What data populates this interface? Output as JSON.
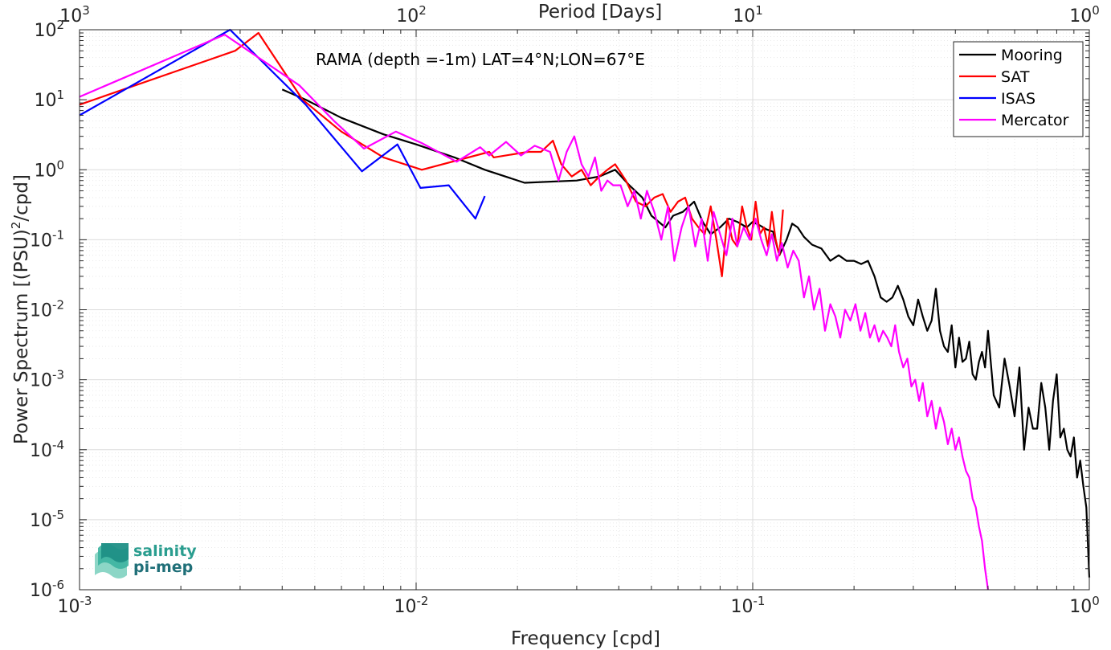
{
  "chart_data": {
    "type": "line",
    "title": "RAMA (depth =-1m) LAT=4°N;LON=67°E",
    "xlabel": "Frequency [cpd]",
    "ylabel": "Power Spectrum [(PSU)²/cpd]",
    "top_xlabel": "Period [Days]",
    "x_scale": "log",
    "y_scale": "log",
    "xlim": [
      0.001,
      1
    ],
    "ylim": [
      1e-06,
      100
    ],
    "grid": true,
    "legend_position": "top-right",
    "x_ticks": [
      {
        "value": 0.001,
        "base": "10",
        "exp": "-3"
      },
      {
        "value": 0.01,
        "base": "10",
        "exp": "-2"
      },
      {
        "value": 0.1,
        "base": "10",
        "exp": "-1"
      },
      {
        "value": 1,
        "base": "10",
        "exp": "0"
      }
    ],
    "top_ticks": [
      {
        "value": 1000,
        "base": "10",
        "exp": "3"
      },
      {
        "value": 100,
        "base": "10",
        "exp": "2"
      },
      {
        "value": 10,
        "base": "10",
        "exp": "1"
      },
      {
        "value": 1,
        "base": "10",
        "exp": "0"
      }
    ],
    "y_ticks": [
      {
        "value": 100,
        "base": "10",
        "exp": "2"
      },
      {
        "value": 10,
        "base": "10",
        "exp": "1"
      },
      {
        "value": 1,
        "base": "10",
        "exp": "0"
      },
      {
        "value": 0.1,
        "base": "10",
        "exp": "-1"
      },
      {
        "value": 0.01,
        "base": "10",
        "exp": "-2"
      },
      {
        "value": 0.001,
        "base": "10",
        "exp": "-3"
      },
      {
        "value": 0.0001,
        "base": "10",
        "exp": "-4"
      },
      {
        "value": 1e-05,
        "base": "10",
        "exp": "-5"
      },
      {
        "value": 1e-06,
        "base": "10",
        "exp": "-6"
      }
    ],
    "series": [
      {
        "name": "Mooring",
        "color": "#000000",
        "x": [
          0.004,
          0.0047,
          0.006,
          0.008,
          0.01,
          0.013,
          0.016,
          0.021,
          0.03,
          0.035,
          0.039,
          0.043,
          0.047,
          0.05,
          0.055,
          0.058,
          0.062,
          0.067,
          0.071,
          0.075,
          0.08,
          0.085,
          0.09,
          0.096,
          0.1,
          0.105,
          0.11,
          0.115,
          0.12,
          0.126,
          0.131,
          0.136,
          0.142,
          0.15,
          0.16,
          0.17,
          0.18,
          0.19,
          0.2,
          0.21,
          0.22,
          0.23,
          0.24,
          0.25,
          0.26,
          0.27,
          0.28,
          0.29,
          0.3,
          0.31,
          0.32,
          0.33,
          0.34,
          0.35,
          0.36,
          0.37,
          0.38,
          0.39,
          0.4,
          0.41,
          0.42,
          0.43,
          0.44,
          0.45,
          0.46,
          0.47,
          0.48,
          0.49,
          0.5,
          0.52,
          0.54,
          0.56,
          0.58,
          0.6,
          0.62,
          0.64,
          0.66,
          0.68,
          0.7,
          0.72,
          0.74,
          0.76,
          0.78,
          0.8,
          0.82,
          0.84,
          0.86,
          0.88,
          0.9,
          0.92,
          0.94,
          0.96,
          0.98,
          1.0
        ],
        "y": [
          14,
          10,
          5.5,
          3.2,
          2.3,
          1.5,
          1.0,
          0.65,
          0.7,
          0.8,
          1.0,
          0.6,
          0.4,
          0.22,
          0.15,
          0.22,
          0.25,
          0.35,
          0.18,
          0.12,
          0.15,
          0.2,
          0.18,
          0.15,
          0.18,
          0.16,
          0.14,
          0.13,
          0.06,
          0.1,
          0.17,
          0.15,
          0.11,
          0.085,
          0.075,
          0.05,
          0.06,
          0.05,
          0.05,
          0.045,
          0.05,
          0.03,
          0.015,
          0.013,
          0.015,
          0.022,
          0.014,
          0.008,
          0.006,
          0.014,
          0.008,
          0.005,
          0.007,
          0.02,
          0.005,
          0.003,
          0.0025,
          0.006,
          0.0015,
          0.004,
          0.0018,
          0.002,
          0.0035,
          0.0012,
          0.001,
          0.0018,
          0.0025,
          0.0015,
          0.005,
          0.0006,
          0.0004,
          0.002,
          0.0008,
          0.0003,
          0.0015,
          0.0001,
          0.0004,
          0.0002,
          0.0002,
          0.0009,
          0.0004,
          0.0001,
          0.0005,
          0.0012,
          0.00015,
          0.0002,
          0.0001,
          8e-05,
          0.00015,
          4e-05,
          7e-05,
          3e-05,
          1.5e-05,
          1.5e-06
        ]
      },
      {
        "name": "SAT",
        "color": "#ff0000",
        "x": [
          0.001,
          0.0029,
          0.0034,
          0.0046,
          0.006,
          0.008,
          0.0104,
          0.0165,
          0.017,
          0.0215,
          0.0235,
          0.0255,
          0.027,
          0.029,
          0.031,
          0.033,
          0.035,
          0.037,
          0.039,
          0.042,
          0.045,
          0.048,
          0.051,
          0.054,
          0.057,
          0.06,
          0.063,
          0.066,
          0.069,
          0.072,
          0.075,
          0.078,
          0.081,
          0.084,
          0.087,
          0.09,
          0.093,
          0.096,
          0.099,
          0.102,
          0.105,
          0.108,
          0.111,
          0.114,
          0.117,
          0.12,
          0.123
        ],
        "y": [
          8.5,
          50,
          90,
          10,
          3.5,
          1.5,
          1.0,
          1.8,
          1.5,
          1.8,
          1.8,
          2.6,
          1.2,
          0.8,
          1.0,
          0.6,
          0.8,
          1.0,
          1.2,
          0.7,
          0.35,
          0.3,
          0.4,
          0.45,
          0.25,
          0.35,
          0.4,
          0.2,
          0.15,
          0.12,
          0.3,
          0.1,
          0.03,
          0.2,
          0.1,
          0.08,
          0.3,
          0.15,
          0.1,
          0.35,
          0.12,
          0.15,
          0.08,
          0.25,
          0.1,
          0.06,
          0.27
        ]
      },
      {
        "name": "ISAS",
        "color": "#0000ff",
        "x": [
          0.001,
          0.0028,
          0.0047,
          0.0069,
          0.0088,
          0.0103,
          0.0125,
          0.015,
          0.016
        ],
        "y": [
          6.0,
          100,
          8.5,
          0.95,
          2.3,
          0.55,
          0.6,
          0.2,
          0.42
        ]
      },
      {
        "name": "Mercator",
        "color": "#ff00ff",
        "x": [
          0.001,
          0.0027,
          0.0045,
          0.0057,
          0.007,
          0.0087,
          0.0104,
          0.0132,
          0.0155,
          0.0165,
          0.0185,
          0.0205,
          0.0225,
          0.025,
          0.0265,
          0.028,
          0.0295,
          0.031,
          0.0325,
          0.034,
          0.0355,
          0.037,
          0.0385,
          0.0405,
          0.0425,
          0.0445,
          0.0465,
          0.0485,
          0.051,
          0.0535,
          0.056,
          0.0585,
          0.0615,
          0.0645,
          0.0675,
          0.0705,
          0.0735,
          0.0765,
          0.08,
          0.0835,
          0.087,
          0.09,
          0.094,
          0.098,
          0.102,
          0.106,
          0.11,
          0.114,
          0.118,
          0.122,
          0.127,
          0.132,
          0.137,
          0.142,
          0.147,
          0.152,
          0.158,
          0.164,
          0.17,
          0.176,
          0.182,
          0.188,
          0.195,
          0.202,
          0.209,
          0.216,
          0.223,
          0.23,
          0.237,
          0.244,
          0.251,
          0.258,
          0.265,
          0.272,
          0.28,
          0.288,
          0.296,
          0.304,
          0.312,
          0.32,
          0.33,
          0.34,
          0.35,
          0.36,
          0.37,
          0.38,
          0.39,
          0.4,
          0.41,
          0.42,
          0.43,
          0.44,
          0.45,
          0.46,
          0.47,
          0.48,
          0.49,
          0.5
        ],
        "y": [
          11,
          85,
          16,
          5,
          2.0,
          3.5,
          2.4,
          1.3,
          2.1,
          1.6,
          2.5,
          1.6,
          2.2,
          1.8,
          0.7,
          1.8,
          3.0,
          1.2,
          0.8,
          1.5,
          0.5,
          0.7,
          0.6,
          0.6,
          0.3,
          0.5,
          0.2,
          0.5,
          0.25,
          0.1,
          0.3,
          0.05,
          0.15,
          0.3,
          0.08,
          0.2,
          0.05,
          0.25,
          0.12,
          0.06,
          0.2,
          0.08,
          0.15,
          0.1,
          0.2,
          0.1,
          0.06,
          0.12,
          0.05,
          0.09,
          0.04,
          0.07,
          0.05,
          0.015,
          0.03,
          0.01,
          0.02,
          0.005,
          0.012,
          0.008,
          0.004,
          0.01,
          0.007,
          0.012,
          0.005,
          0.009,
          0.004,
          0.006,
          0.0035,
          0.005,
          0.004,
          0.003,
          0.006,
          0.0025,
          0.0015,
          0.002,
          0.0008,
          0.001,
          0.0005,
          0.0009,
          0.0003,
          0.0005,
          0.0002,
          0.0004,
          0.00025,
          0.00012,
          0.0002,
          0.0001,
          0.00015,
          8e-05,
          5e-05,
          4e-05,
          2e-05,
          1.5e-05,
          8e-06,
          5e-06,
          2e-06,
          1e-06
        ]
      }
    ]
  },
  "logo": {
    "line1": "salinity",
    "line2": "pi-mep",
    "color1": "#2a9d8f",
    "color2": "#1f6f78"
  }
}
